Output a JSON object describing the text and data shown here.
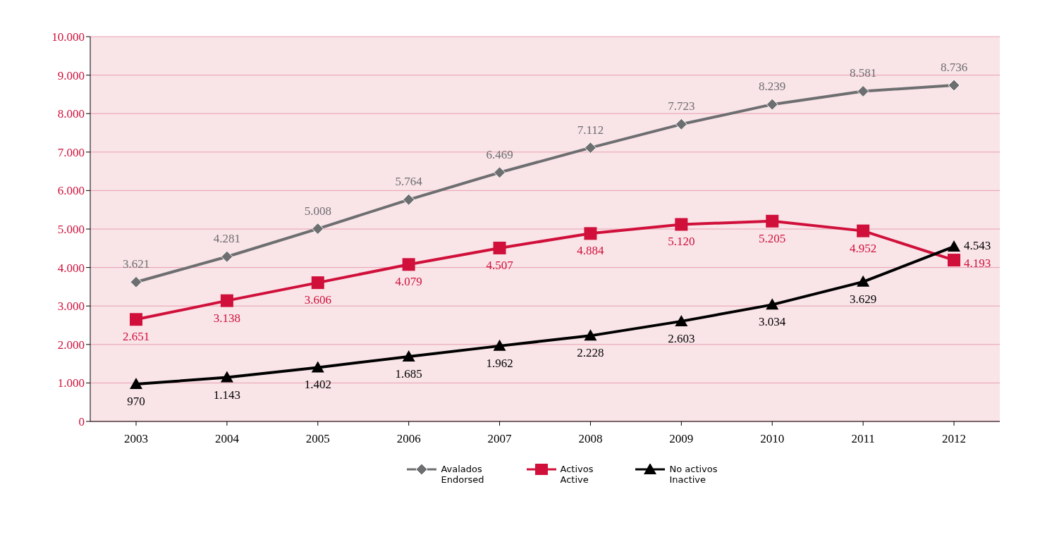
{
  "chart_data": {
    "type": "line",
    "categories": [
      "2003",
      "2004",
      "2005",
      "2006",
      "2007",
      "2008",
      "2009",
      "2010",
      "2011",
      "2012"
    ],
    "series": [
      {
        "name": "Avalados\nEndorsed",
        "color": "#6d6e70",
        "values": [
          3621,
          4281,
          5008,
          5764,
          6469,
          7112,
          7723,
          8239,
          8581,
          8736
        ],
        "value_labels": [
          "3.621",
          "4.281",
          "5.008",
          "5.764",
          "6.469",
          "7.112",
          "7.723",
          "8.239",
          "8.581",
          "8.736"
        ],
        "marker": "diamond"
      },
      {
        "name": "Activos\nActive",
        "color": "#d0103a",
        "values": [
          2651,
          3138,
          3606,
          4079,
          4507,
          4884,
          5120,
          5205,
          4952,
          4193
        ],
        "value_labels": [
          "2.651",
          "3.138",
          "3.606",
          "4.079",
          "4.507",
          "4.884",
          "5.120",
          "5.205",
          "4.952",
          "4.193"
        ],
        "marker": "square"
      },
      {
        "name": "No activos\nInactive",
        "color": "#000000",
        "values": [
          970,
          1143,
          1402,
          1685,
          1962,
          2228,
          2603,
          3034,
          3629,
          4543
        ],
        "value_labels": [
          "970",
          "1.143",
          "1.402",
          "1.685",
          "1.962",
          "2.228",
          "2.603",
          "3.034",
          "3.629",
          "4.543"
        ],
        "marker": "triangle"
      }
    ],
    "ylim": [
      0,
      10000
    ],
    "yticks": [
      0,
      {
        "value": 1000,
        "label": "1.000"
      },
      {
        "value": 2000,
        "label": "2.000"
      },
      {
        "value": 3000,
        "label": "3.000"
      },
      {
        "value": 4000,
        "label": "4.000"
      },
      {
        "value": 5000,
        "label": "5.000"
      },
      {
        "value": 6000,
        "label": "6.000"
      },
      {
        "value": 7000,
        "label": "7.000"
      },
      {
        "value": 8000,
        "label": "8.000"
      },
      {
        "value": 9000,
        "label": "9.000"
      },
      {
        "value": 10000,
        "label": "10.000"
      }
    ],
    "grid": "y",
    "legend": "bottom",
    "line_style": "solid"
  }
}
